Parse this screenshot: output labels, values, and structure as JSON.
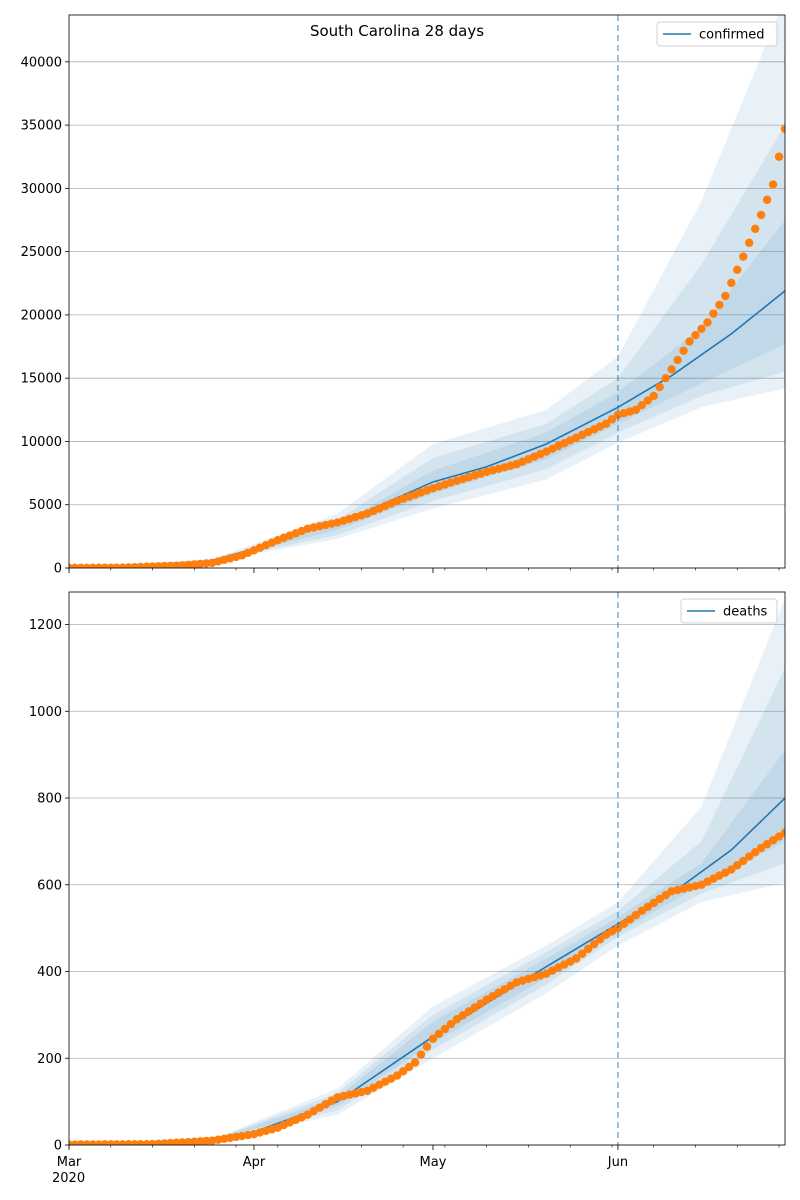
{
  "figure": {
    "title": "South Carolina 28 days"
  },
  "chart_data": [
    {
      "type": "line",
      "title": "South Carolina 28 days",
      "x_type": "date",
      "xlim": [
        "2020-03-01",
        "2020-06-29"
      ],
      "ylim": [
        0,
        43700
      ],
      "yticks": [
        0,
        5000,
        10000,
        15000,
        20000,
        25000,
        30000,
        35000,
        40000
      ],
      "xtick_labels": [
        "Mar\n2020",
        "Apr",
        "May",
        "Jun"
      ],
      "grid": "y",
      "legend_position": "top-right",
      "forecast_start": "2020-06-01",
      "series": [
        {
          "name": "confirmed",
          "kind": "median-line",
          "x": [
            "2020-03-01",
            "2020-03-15",
            "2020-03-25",
            "2020-04-01",
            "2020-04-10",
            "2020-04-20",
            "2020-05-01",
            "2020-05-10",
            "2020-05-20",
            "2020-06-01",
            "2020-06-10",
            "2020-06-20",
            "2020-06-29"
          ],
          "y": [
            0,
            50,
            600,
            1500,
            3000,
            4500,
            6800,
            8000,
            9800,
            12700,
            15200,
            18500,
            21900
          ]
        },
        {
          "kind": "observed-points",
          "x": [
            "2020-03-01",
            "2020-03-10",
            "2020-03-20",
            "2020-03-25",
            "2020-03-30",
            "2020-04-05",
            "2020-04-10",
            "2020-04-15",
            "2020-04-20",
            "2020-04-25",
            "2020-05-01",
            "2020-05-05",
            "2020-05-10",
            "2020-05-15",
            "2020-05-20",
            "2020-05-25",
            "2020-05-30",
            "2020-06-01",
            "2020-06-04",
            "2020-06-07",
            "2020-06-10",
            "2020-06-13",
            "2020-06-16",
            "2020-06-19",
            "2020-06-22",
            "2020-06-25",
            "2020-06-27",
            "2020-06-29"
          ],
          "y": [
            10,
            30,
            200,
            400,
            1000,
            2200,
            3100,
            3600,
            4300,
            5300,
            6300,
            6900,
            7600,
            8200,
            9200,
            10300,
            11400,
            12100,
            12500,
            13600,
            15700,
            17900,
            19400,
            21500,
            24600,
            27900,
            30300,
            34700
          ]
        }
      ],
      "bands": [
        {
          "x": [
            "2020-03-01",
            "2020-03-25",
            "2020-04-15",
            "2020-05-01",
            "2020-05-20",
            "2020-06-01",
            "2020-06-15",
            "2020-06-29"
          ],
          "lower": [
            0,
            500,
            2300,
            4700,
            7000,
            9900,
            12700,
            14200
          ],
          "upper": [
            0,
            700,
            4300,
            9800,
            12500,
            16700,
            29000,
            45000
          ]
        },
        {
          "x": [
            "2020-03-01",
            "2020-03-25",
            "2020-04-15",
            "2020-05-01",
            "2020-05-20",
            "2020-06-01",
            "2020-06-15",
            "2020-06-29"
          ],
          "lower": [
            0,
            540,
            2600,
            5300,
            7800,
            10700,
            13600,
            15500
          ],
          "upper": [
            0,
            660,
            3800,
            8700,
            11400,
            15000,
            24000,
            35000
          ]
        },
        {
          "x": [
            "2020-03-01",
            "2020-03-25",
            "2020-04-15",
            "2020-05-01",
            "2020-05-20",
            "2020-06-01",
            "2020-06-15",
            "2020-06-29"
          ],
          "lower": [
            0,
            570,
            3000,
            5900,
            8600,
            11400,
            14600,
            17700
          ],
          "upper": [
            0,
            630,
            3400,
            7700,
            10700,
            13900,
            19000,
            27500
          ]
        }
      ]
    },
    {
      "type": "line",
      "x_type": "date",
      "xlim": [
        "2020-03-01",
        "2020-06-29"
      ],
      "ylim": [
        0,
        1275
      ],
      "yticks": [
        0,
        200,
        400,
        600,
        800,
        1000,
        1200
      ],
      "xtick_labels": [
        "Mar\n2020",
        "Apr",
        "May",
        "Jun"
      ],
      "grid": "y",
      "legend_position": "top-right",
      "forecast_start": "2020-06-01",
      "series": [
        {
          "name": "deaths",
          "kind": "median-line",
          "x": [
            "2020-03-01",
            "2020-03-20",
            "2020-04-01",
            "2020-04-15",
            "2020-05-01",
            "2020-05-15",
            "2020-06-01",
            "2020-06-10",
            "2020-06-20",
            "2020-06-29"
          ],
          "y": [
            0,
            5,
            30,
            100,
            250,
            370,
            510,
            580,
            680,
            800
          ]
        },
        {
          "kind": "observed-points",
          "x": [
            "2020-03-01",
            "2020-03-15",
            "2020-03-25",
            "2020-04-01",
            "2020-04-05",
            "2020-04-10",
            "2020-04-15",
            "2020-04-20",
            "2020-04-25",
            "2020-04-28",
            "2020-05-01",
            "2020-05-05",
            "2020-05-10",
            "2020-05-15",
            "2020-05-20",
            "2020-05-25",
            "2020-05-30",
            "2020-06-01",
            "2020-06-05",
            "2020-06-10",
            "2020-06-15",
            "2020-06-20",
            "2020-06-25",
            "2020-06-29"
          ],
          "y": [
            1,
            2,
            10,
            25,
            40,
            70,
            110,
            125,
            160,
            190,
            245,
            290,
            335,
            375,
            395,
            430,
            485,
            500,
            540,
            585,
            600,
            635,
            685,
            720
          ]
        }
      ],
      "bands": [
        {
          "x": [
            "2020-03-01",
            "2020-03-25",
            "2020-04-15",
            "2020-05-01",
            "2020-05-20",
            "2020-06-01",
            "2020-06-15",
            "2020-06-29"
          ],
          "lower": [
            0,
            8,
            70,
            200,
            350,
            460,
            560,
            605
          ],
          "upper": [
            0,
            13,
            130,
            320,
            460,
            560,
            780,
            1260
          ]
        },
        {
          "x": [
            "2020-03-01",
            "2020-03-25",
            "2020-04-15",
            "2020-05-01",
            "2020-05-20",
            "2020-06-01",
            "2020-06-15",
            "2020-06-29"
          ],
          "lower": [
            0,
            9,
            80,
            220,
            370,
            480,
            580,
            650
          ],
          "upper": [
            0,
            12,
            120,
            300,
            445,
            540,
            700,
            1100
          ]
        },
        {
          "x": [
            "2020-03-01",
            "2020-03-25",
            "2020-04-15",
            "2020-05-01",
            "2020-05-20",
            "2020-06-01",
            "2020-06-15",
            "2020-06-29"
          ],
          "lower": [
            0,
            10,
            90,
            235,
            385,
            490,
            600,
            700
          ],
          "upper": [
            0,
            11,
            110,
            285,
            430,
            525,
            650,
            910
          ]
        }
      ]
    }
  ],
  "colors": {
    "line": "#1f77b4",
    "points": "#ff7f0e",
    "band": "#1f77b4",
    "grid": "#b0b0b0",
    "forecast_line": "#1f77b4"
  }
}
